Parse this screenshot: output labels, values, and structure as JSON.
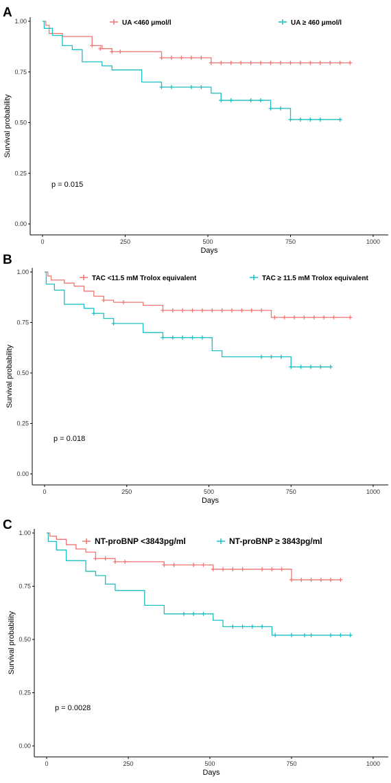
{
  "colors": {
    "low": "#F07470",
    "high": "#1ABEC3",
    "axis": "#000000",
    "text": "#333333"
  },
  "chart_data": [
    {
      "type": "line",
      "panel_label": "A",
      "xlabel": "Days",
      "ylabel": "Survival probability",
      "xlim": [
        0,
        1000
      ],
      "ylim": [
        0,
        1
      ],
      "x_ticks": [
        "0",
        "250",
        "500",
        "750",
        "1000"
      ],
      "y_ticks": [
        "0.00",
        "0.25",
        "0.50",
        "0.75",
        "1.00"
      ],
      "annotation": "p = 0.015",
      "legend_position": "top",
      "grid": false,
      "series": [
        {
          "name": "UA <460 μmol/l",
          "steps": [
            [
              0,
              1
            ],
            [
              10,
              0.98
            ],
            [
              20,
              0.94
            ],
            [
              60,
              0.925
            ],
            [
              150,
              0.88
            ],
            [
              180,
              0.865
            ],
            [
              210,
              0.85
            ],
            [
              360,
              0.82
            ],
            [
              510,
              0.795
            ],
            [
              930,
              0.795
            ]
          ],
          "censored": [
            [
              150,
              0.88
            ],
            [
              175,
              0.865
            ],
            [
              210,
              0.85
            ],
            [
              235,
              0.85
            ],
            [
              360,
              0.82
            ],
            [
              390,
              0.82
            ],
            [
              420,
              0.82
            ],
            [
              450,
              0.82
            ],
            [
              480,
              0.82
            ],
            [
              510,
              0.795
            ],
            [
              540,
              0.795
            ],
            [
              570,
              0.795
            ],
            [
              600,
              0.795
            ],
            [
              630,
              0.795
            ],
            [
              660,
              0.795
            ],
            [
              690,
              0.795
            ],
            [
              720,
              0.795
            ],
            [
              750,
              0.795
            ],
            [
              780,
              0.795
            ],
            [
              810,
              0.795
            ],
            [
              840,
              0.795
            ],
            [
              870,
              0.795
            ],
            [
              900,
              0.795
            ],
            [
              930,
              0.795
            ]
          ]
        },
        {
          "name": "UA ≥ 460 μmol/l",
          "steps": [
            [
              0,
              1
            ],
            [
              5,
              0.965
            ],
            [
              30,
              0.93
            ],
            [
              60,
              0.88
            ],
            [
              90,
              0.86
            ],
            [
              120,
              0.8
            ],
            [
              180,
              0.78
            ],
            [
              210,
              0.76
            ],
            [
              300,
              0.7
            ],
            [
              360,
              0.675
            ],
            [
              510,
              0.645
            ],
            [
              540,
              0.61
            ],
            [
              690,
              0.57
            ],
            [
              750,
              0.515
            ],
            [
              900,
              0.515
            ]
          ],
          "censored": [
            [
              360,
              0.675
            ],
            [
              390,
              0.675
            ],
            [
              450,
              0.675
            ],
            [
              480,
              0.675
            ],
            [
              540,
              0.61
            ],
            [
              570,
              0.61
            ],
            [
              630,
              0.61
            ],
            [
              660,
              0.61
            ],
            [
              690,
              0.57
            ],
            [
              720,
              0.57
            ],
            [
              750,
              0.515
            ],
            [
              780,
              0.515
            ],
            [
              810,
              0.515
            ],
            [
              840,
              0.515
            ],
            [
              900,
              0.515
            ]
          ]
        }
      ]
    },
    {
      "type": "line",
      "panel_label": "B",
      "xlabel": "Days",
      "ylabel": "Survival probability",
      "xlim": [
        0,
        1000
      ],
      "ylim": [
        0,
        1
      ],
      "x_ticks": [
        "0",
        "250",
        "500",
        "750",
        "1000"
      ],
      "y_ticks": [
        "0.00",
        "0.25",
        "0.50",
        "0.75",
        "1.00"
      ],
      "annotation": "p = 0.018",
      "legend_position": "top",
      "grid": false,
      "series": [
        {
          "name": "TAC <11.5 mM Trolox equivalent",
          "steps": [
            [
              0,
              1
            ],
            [
              10,
              0.98
            ],
            [
              20,
              0.96
            ],
            [
              60,
              0.945
            ],
            [
              90,
              0.93
            ],
            [
              120,
              0.905
            ],
            [
              150,
              0.88
            ],
            [
              180,
              0.86
            ],
            [
              210,
              0.85
            ],
            [
              300,
              0.835
            ],
            [
              360,
              0.81
            ],
            [
              690,
              0.775
            ],
            [
              930,
              0.775
            ]
          ],
          "censored": [
            [
              180,
              0.86
            ],
            [
              240,
              0.85
            ],
            [
              360,
              0.81
            ],
            [
              390,
              0.81
            ],
            [
              420,
              0.81
            ],
            [
              450,
              0.81
            ],
            [
              480,
              0.81
            ],
            [
              510,
              0.81
            ],
            [
              540,
              0.81
            ],
            [
              570,
              0.81
            ],
            [
              600,
              0.81
            ],
            [
              630,
              0.81
            ],
            [
              660,
              0.81
            ],
            [
              700,
              0.775
            ],
            [
              730,
              0.775
            ],
            [
              760,
              0.775
            ],
            [
              790,
              0.775
            ],
            [
              820,
              0.775
            ],
            [
              850,
              0.775
            ],
            [
              880,
              0.775
            ],
            [
              930,
              0.775
            ]
          ]
        },
        {
          "name": "TAC ≥ 11.5 mM Trolox equivalent",
          "steps": [
            [
              0,
              1
            ],
            [
              5,
              0.94
            ],
            [
              30,
              0.91
            ],
            [
              60,
              0.84
            ],
            [
              120,
              0.82
            ],
            [
              150,
              0.795
            ],
            [
              180,
              0.77
            ],
            [
              210,
              0.745
            ],
            [
              300,
              0.7
            ],
            [
              360,
              0.675
            ],
            [
              510,
              0.61
            ],
            [
              540,
              0.58
            ],
            [
              750,
              0.53
            ],
            [
              870,
              0.53
            ]
          ],
          "censored": [
            [
              150,
              0.795
            ],
            [
              210,
              0.745
            ],
            [
              360,
              0.675
            ],
            [
              390,
              0.675
            ],
            [
              420,
              0.675
            ],
            [
              450,
              0.675
            ],
            [
              480,
              0.675
            ],
            [
              660,
              0.58
            ],
            [
              690,
              0.58
            ],
            [
              720,
              0.58
            ],
            [
              750,
              0.53
            ],
            [
              780,
              0.53
            ],
            [
              810,
              0.53
            ],
            [
              840,
              0.53
            ],
            [
              870,
              0.53
            ]
          ]
        }
      ]
    },
    {
      "type": "line",
      "panel_label": "C",
      "xlabel": "Days",
      "ylabel": "Survival probability",
      "xlim": [
        0,
        1000
      ],
      "ylim": [
        0,
        1
      ],
      "x_ticks": [
        "0",
        "250",
        "500",
        "750",
        "1000"
      ],
      "y_ticks": [
        "0.00",
        "0.25",
        "0.50",
        "0.75",
        "1.00"
      ],
      "annotation": "p = 0.0028",
      "legend_position": "top",
      "grid": false,
      "series": [
        {
          "name": "NT-proBNP <3843pg/ml",
          "steps": [
            [
              0,
              1
            ],
            [
              10,
              0.985
            ],
            [
              30,
              0.97
            ],
            [
              60,
              0.945
            ],
            [
              90,
              0.925
            ],
            [
              120,
              0.91
            ],
            [
              150,
              0.88
            ],
            [
              210,
              0.865
            ],
            [
              360,
              0.85
            ],
            [
              510,
              0.83
            ],
            [
              750,
              0.78
            ],
            [
              900,
              0.78
            ]
          ],
          "censored": [
            [
              150,
              0.88
            ],
            [
              180,
              0.88
            ],
            [
              210,
              0.865
            ],
            [
              240,
              0.865
            ],
            [
              360,
              0.85
            ],
            [
              390,
              0.85
            ],
            [
              450,
              0.85
            ],
            [
              480,
              0.85
            ],
            [
              510,
              0.83
            ],
            [
              540,
              0.83
            ],
            [
              570,
              0.83
            ],
            [
              600,
              0.83
            ],
            [
              660,
              0.83
            ],
            [
              690,
              0.83
            ],
            [
              720,
              0.83
            ],
            [
              750,
              0.78
            ],
            [
              780,
              0.78
            ],
            [
              810,
              0.78
            ],
            [
              840,
              0.78
            ],
            [
              870,
              0.78
            ],
            [
              900,
              0.78
            ]
          ]
        },
        {
          "name": "NT-proBNP ≥ 3843pg/ml",
          "steps": [
            [
              0,
              1
            ],
            [
              5,
              0.96
            ],
            [
              30,
              0.92
            ],
            [
              60,
              0.87
            ],
            [
              120,
              0.82
            ],
            [
              150,
              0.8
            ],
            [
              180,
              0.76
            ],
            [
              210,
              0.73
            ],
            [
              300,
              0.66
            ],
            [
              360,
              0.62
            ],
            [
              510,
              0.59
            ],
            [
              540,
              0.56
            ],
            [
              690,
              0.52
            ],
            [
              930,
              0.52
            ]
          ],
          "censored": [
            [
              420,
              0.62
            ],
            [
              450,
              0.62
            ],
            [
              480,
              0.62
            ],
            [
              570,
              0.56
            ],
            [
              600,
              0.56
            ],
            [
              630,
              0.56
            ],
            [
              660,
              0.56
            ],
            [
              700,
              0.52
            ],
            [
              750,
              0.52
            ],
            [
              790,
              0.52
            ],
            [
              810,
              0.52
            ],
            [
              870,
              0.52
            ],
            [
              900,
              0.52
            ],
            [
              930,
              0.52
            ]
          ]
        }
      ]
    }
  ]
}
